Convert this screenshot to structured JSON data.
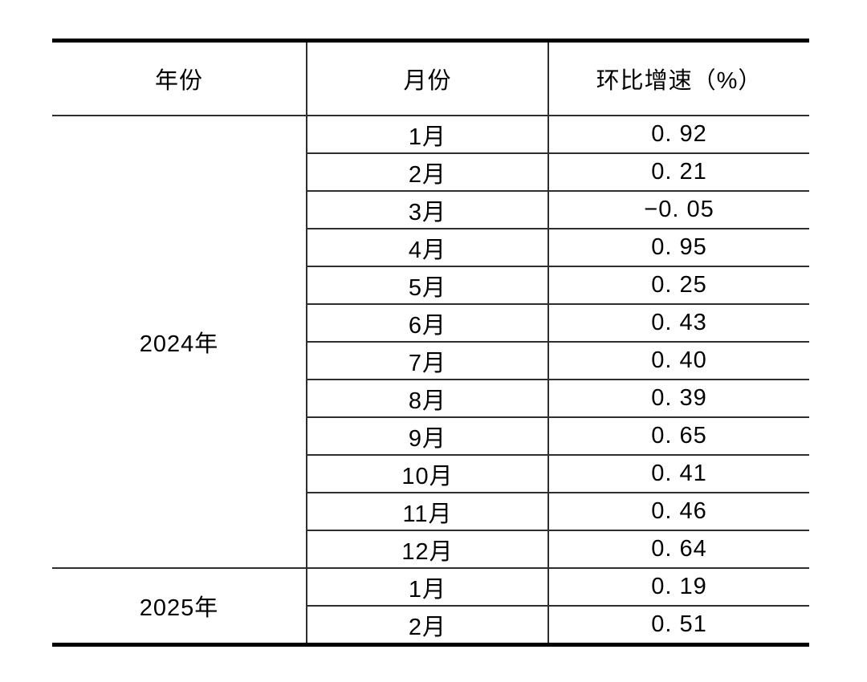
{
  "page": {
    "background": "#ffffff"
  },
  "table": {
    "columns": [
      "年份",
      "月份",
      "环比增速（%）"
    ],
    "groups": [
      {
        "year": "2024年",
        "rows": [
          {
            "month": "1月",
            "value": "0. 92"
          },
          {
            "month": "2月",
            "value": "0. 21"
          },
          {
            "month": "3月",
            "value": "−0. 05"
          },
          {
            "month": "4月",
            "value": "0. 95"
          },
          {
            "month": "5月",
            "value": "0. 25"
          },
          {
            "month": "6月",
            "value": "0. 43"
          },
          {
            "month": "7月",
            "value": "0. 40"
          },
          {
            "month": "8月",
            "value": "0. 39"
          },
          {
            "month": "9月",
            "value": "0. 65"
          },
          {
            "month": "10月",
            "value": "0. 41"
          },
          {
            "month": "11月",
            "value": "0. 46"
          },
          {
            "month": "12月",
            "value": "0. 64"
          }
        ]
      },
      {
        "year": "2025年",
        "rows": [
          {
            "month": "1月",
            "value": "0. 19"
          },
          {
            "month": "2月",
            "value": "0. 51"
          }
        ]
      }
    ],
    "colors": {
      "thick_border": "#000000",
      "thin_border": "#2e2e2e",
      "text": "#000000",
      "background": "#ffffff"
    }
  },
  "chart_data": {
    "type": "table",
    "columns": [
      "年份",
      "月份",
      "环比增速（%）"
    ],
    "rows": [
      [
        "2024年",
        "1月",
        0.92
      ],
      [
        "2024年",
        "2月",
        0.21
      ],
      [
        "2024年",
        "3月",
        -0.05
      ],
      [
        "2024年",
        "4月",
        0.95
      ],
      [
        "2024年",
        "5月",
        0.25
      ],
      [
        "2024年",
        "6月",
        0.43
      ],
      [
        "2024年",
        "7月",
        0.4
      ],
      [
        "2024年",
        "8月",
        0.39
      ],
      [
        "2024年",
        "9月",
        0.65
      ],
      [
        "2024年",
        "10月",
        0.41
      ],
      [
        "2024年",
        "11月",
        0.46
      ],
      [
        "2024年",
        "12月",
        0.64
      ],
      [
        "2025年",
        "1月",
        0.19
      ],
      [
        "2025年",
        "2月",
        0.51
      ]
    ]
  }
}
